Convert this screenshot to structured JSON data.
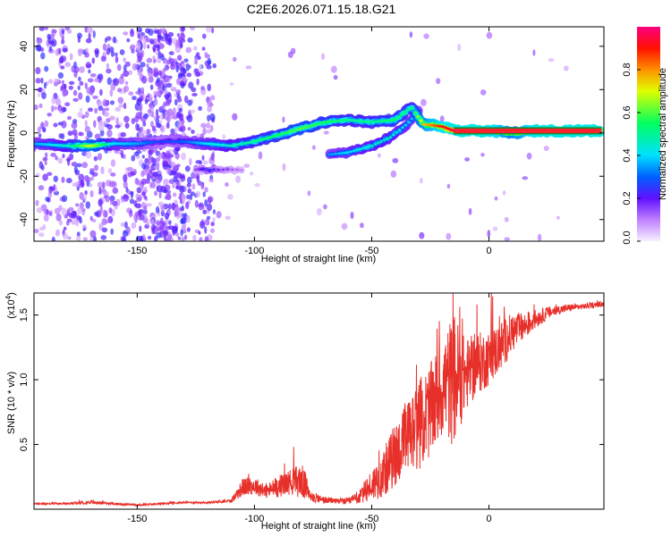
{
  "title": "C2E6.2026.071.15.18.G21",
  "chart_data": [
    {
      "type": "heatmap",
      "xlabel": "Height of straight line (km)",
      "ylabel": "Frequency (Hz)",
      "xlim": [
        -194,
        49
      ],
      "ylim": [
        -50,
        49
      ],
      "xticks": [
        -150,
        -100,
        -50,
        0
      ],
      "yticks": [
        -40,
        -20,
        0,
        20,
        40
      ],
      "colorbar": {
        "label": "Normalized spectral amplitude",
        "range": [
          0.0,
          1.0
        ],
        "ticks": [
          0.0,
          0.2,
          0.4,
          0.6,
          0.8
        ],
        "tick_labels": [
          "0.0",
          "0.2",
          "0.4",
          "0.6",
          "0.8"
        ]
      },
      "main_track": {
        "x": [
          -194,
          -180,
          -170,
          -160,
          -150,
          -140,
          -130,
          -120,
          -110,
          -100,
          -90,
          -80,
          -70,
          -60,
          -50,
          -40,
          -33,
          -28,
          -20,
          -15,
          0,
          10,
          20,
          48
        ],
        "y": [
          -5,
          -6,
          -6,
          -5,
          -5,
          -4,
          -4,
          -5,
          -6,
          -4,
          -1,
          2,
          5,
          6,
          5,
          6,
          12,
          4,
          3,
          1,
          1,
          0,
          1,
          1
        ],
        "amplitude": [
          0.35,
          0.45,
          0.7,
          0.4,
          0.35,
          0.25,
          0.3,
          0.4,
          0.45,
          0.5,
          0.55,
          0.6,
          0.55,
          0.5,
          0.5,
          0.55,
          0.5,
          0.75,
          0.9,
          0.95,
          0.95,
          0.7,
          0.95,
          0.95
        ]
      },
      "secondary_track": {
        "x": [
          -68,
          -60,
          -50,
          -42,
          -35,
          -30
        ],
        "y": [
          -10,
          -9,
          -6,
          -2,
          4,
          10
        ],
        "amplitude": [
          0.35,
          0.4,
          0.45,
          0.45,
          0.4,
          0.35
        ]
      },
      "lower_track": {
        "x": [
          -125,
          -120,
          -115,
          -110,
          -105
        ],
        "y": [
          -17,
          -17,
          -17,
          -17,
          -17
        ],
        "amplitude": [
          0.15,
          0.3,
          0.2,
          0.15,
          0.1
        ]
      }
    },
    {
      "type": "line",
      "xlabel": "Height of straight line (km)",
      "ylabel": "SNR (10 * v/v)",
      "yscale_label": "(x10",
      "yscale_exp": "4",
      "yscale_close": ")",
      "xlim": [
        -194,
        49
      ],
      "ylim": [
        0,
        1.67
      ],
      "xticks": [
        -150,
        -100,
        -50,
        0
      ],
      "yticks": [
        0.5,
        1.0,
        1.5
      ],
      "ytick_labels": [
        "0.5",
        "1.0",
        "1.5"
      ],
      "color": "#e8302a",
      "x": [
        -194,
        -180,
        -170,
        -160,
        -150,
        -140,
        -130,
        -120,
        -110,
        -105,
        -100,
        -95,
        -90,
        -85,
        -80,
        -75,
        -70,
        -65,
        -60,
        -55,
        -50,
        -45,
        -40,
        -35,
        -30,
        -25,
        -20,
        -15,
        -10,
        -5,
        0,
        5,
        10,
        15,
        20,
        25,
        30,
        35,
        40,
        45,
        49
      ],
      "values": [
        0.04,
        0.04,
        0.05,
        0.04,
        0.03,
        0.04,
        0.05,
        0.05,
        0.06,
        0.15,
        0.16,
        0.12,
        0.15,
        0.18,
        0.18,
        0.08,
        0.06,
        0.06,
        0.05,
        0.08,
        0.15,
        0.22,
        0.35,
        0.45,
        0.55,
        0.65,
        0.82,
        0.85,
        0.95,
        1.05,
        1.1,
        1.2,
        1.32,
        1.38,
        1.45,
        1.5,
        1.53,
        1.55,
        1.56,
        1.57,
        1.58
      ],
      "spread": [
        0.01,
        0.01,
        0.02,
        0.01,
        0.01,
        0.01,
        0.01,
        0.01,
        0.02,
        0.1,
        0.1,
        0.08,
        0.12,
        0.14,
        0.2,
        0.06,
        0.04,
        0.03,
        0.04,
        0.08,
        0.18,
        0.26,
        0.36,
        0.42,
        0.5,
        0.52,
        0.55,
        0.75,
        0.4,
        0.35,
        0.3,
        0.28,
        0.22,
        0.15,
        0.1,
        0.07,
        0.05,
        0.04,
        0.03,
        0.03,
        0.03
      ]
    }
  ]
}
